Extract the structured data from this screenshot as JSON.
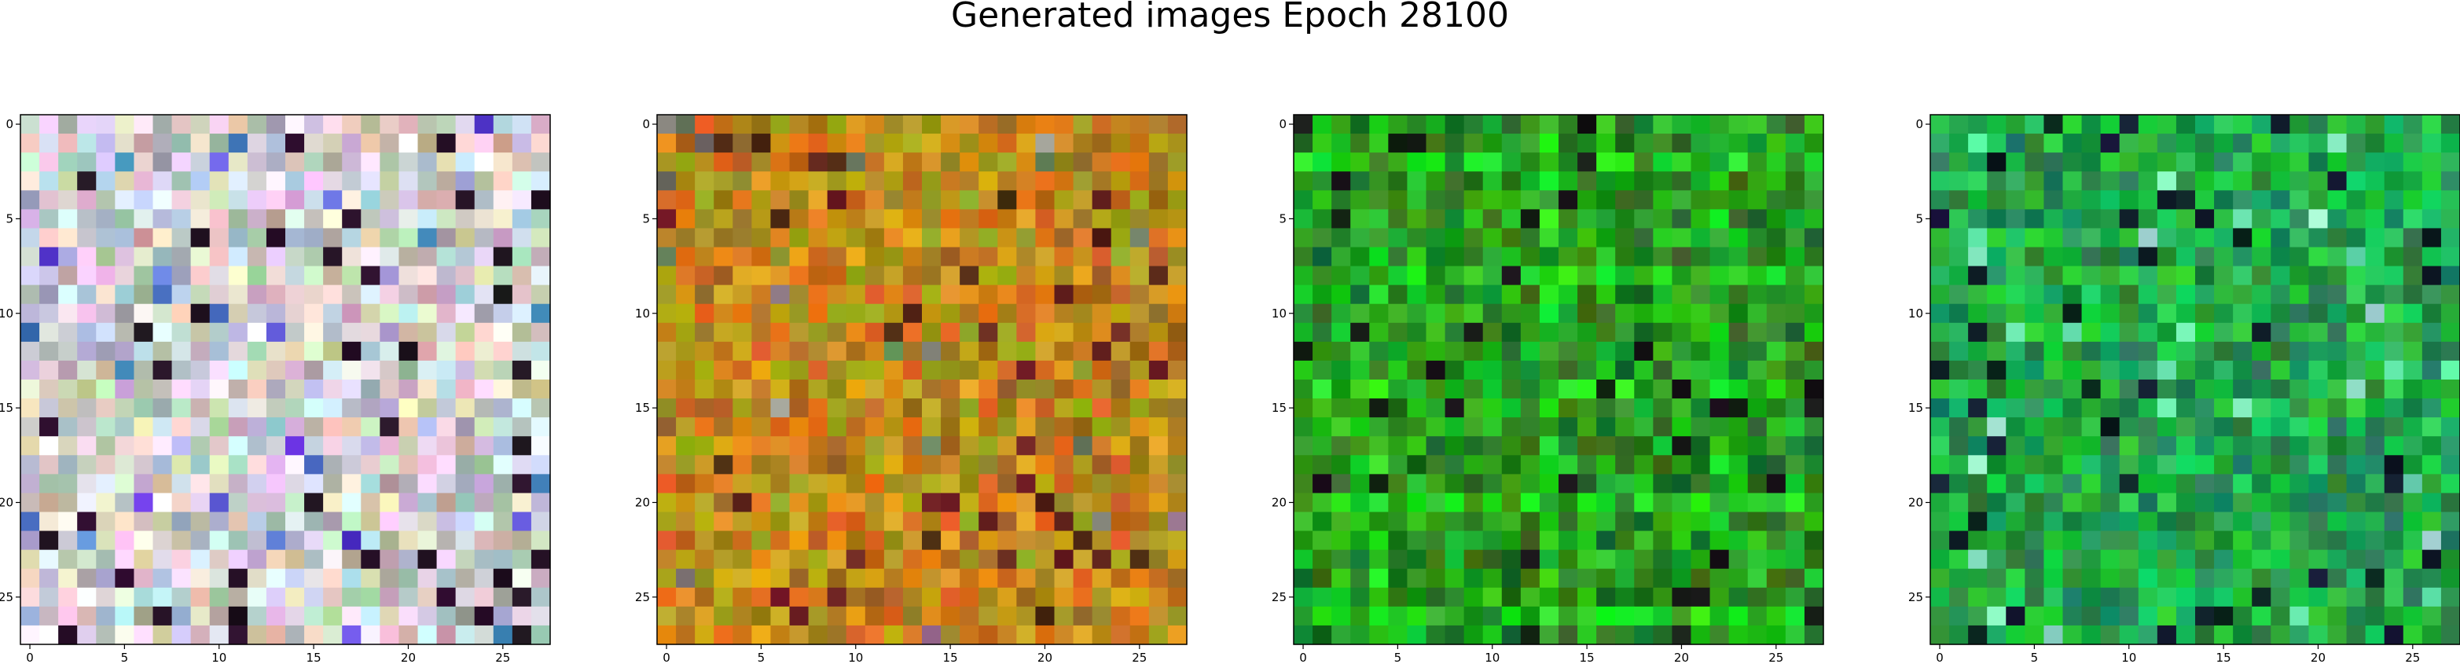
{
  "figure": {
    "title": "Generated images Epoch 28100"
  },
  "panels": [
    {
      "palette": "pastel",
      "xticks": [
        "0",
        "5",
        "10",
        "15",
        "20",
        "25"
      ],
      "yticks": [
        "0",
        "5",
        "10",
        "15",
        "20",
        "25"
      ]
    },
    {
      "palette": "ochre",
      "xticks": [
        "0",
        "5",
        "10",
        "15",
        "20",
        "25"
      ],
      "yticks": [
        "0",
        "5",
        "10",
        "15",
        "20",
        "25"
      ]
    },
    {
      "palette": "green",
      "xticks": [
        "0",
        "5",
        "10",
        "15",
        "20",
        "25"
      ],
      "yticks": [
        "0",
        "5",
        "10",
        "15",
        "20",
        "25"
      ]
    },
    {
      "palette": "green-cyan",
      "xticks": [
        "0",
        "5",
        "10",
        "15",
        "20",
        "25"
      ],
      "yticks": [
        "0",
        "5",
        "10",
        "15",
        "20",
        "25"
      ]
    }
  ]
}
